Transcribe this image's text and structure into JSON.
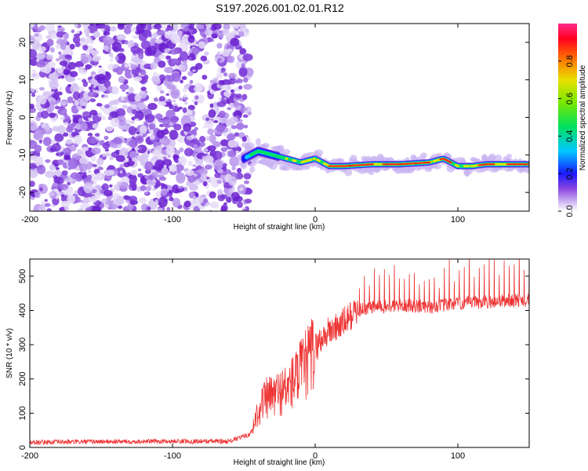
{
  "title": "S197.2026.001.02.01.R12",
  "chart_data": [
    {
      "type": "heatmap",
      "title": "S197.2026.001.02.01.R12",
      "xlabel": "Height of straight line (km)",
      "ylabel": "Frequency (Hz)",
      "xlim": [
        -200,
        150
      ],
      "ylim": [
        -25,
        25
      ],
      "xticks": [
        -200,
        -100,
        0,
        100
      ],
      "yticks": [
        -20,
        -10,
        0,
        10,
        20
      ],
      "colorbar": {
        "label": "Normalized spectral amplitude",
        "range": [
          0,
          1
        ],
        "ticks": [
          "0.0",
          "0.2",
          "0.4",
          "0.6",
          "0.8"
        ],
        "tick_values": [
          0.0,
          0.2,
          0.4,
          0.6,
          0.8
        ]
      },
      "ridge": {
        "description_points_x": [
          -50,
          -40,
          -30,
          -20,
          -10,
          0,
          10,
          20,
          40,
          60,
          80,
          90,
          100,
          110,
          120,
          150
        ],
        "frequency_hz": [
          -11,
          -9,
          -10,
          -11,
          -12,
          -11,
          -13,
          -13,
          -12.5,
          -12.5,
          -12,
          -11,
          -13,
          -13,
          -12.5,
          -12.5
        ]
      },
      "noise_region_x": [
        -200,
        -50
      ]
    },
    {
      "type": "line",
      "xlabel": "Height of straight line (km)",
      "ylabel": "SNR (10 * v/v)",
      "xlim": [
        -200,
        150
      ],
      "ylim": [
        0,
        550
      ],
      "xticks": [
        -200,
        -100,
        0,
        100
      ],
      "yticks": [
        0,
        100,
        200,
        300,
        400,
        500
      ],
      "series": [
        {
          "name": "SNR",
          "color": "#ee3333",
          "x": [
            -200,
            -150,
            -100,
            -60,
            -45,
            -40,
            -35,
            -30,
            -25,
            -20,
            -15,
            -10,
            -5,
            0,
            5,
            10,
            15,
            20,
            25,
            30,
            40,
            50,
            60,
            80,
            100,
            120,
            140,
            150
          ],
          "y": [
            15,
            17,
            18,
            18,
            40,
            110,
            140,
            150,
            160,
            170,
            195,
            220,
            250,
            290,
            320,
            340,
            350,
            365,
            385,
            400,
            410,
            410,
            415,
            410,
            420,
            425,
            430,
            430
          ]
        }
      ]
    }
  ],
  "colors": {
    "line": "#ee3333",
    "noise": "#7a3fd6",
    "axes": "#000000"
  }
}
